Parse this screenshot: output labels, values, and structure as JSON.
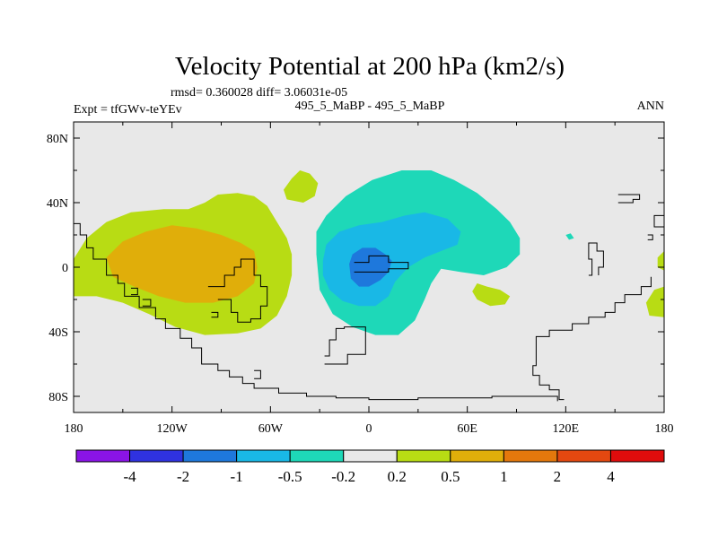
{
  "chart_data": {
    "type": "contour-map",
    "title": "Velocity Potential at 200 hPa (km2/s)",
    "subtitle_stats": "rmsd= 0.360028 diff= 3.06031e-05",
    "left_label": "Expt = tfGWv-teYEv",
    "center_label": "495_5_MaBP - 495_5_MaBP",
    "right_label": "ANN",
    "lon_range": [
      -180,
      180
    ],
    "lat_range": [
      -90,
      90
    ],
    "x_ticks": [
      {
        "value": -180,
        "label": "180"
      },
      {
        "value": -120,
        "label": "120W"
      },
      {
        "value": -60,
        "label": "60W"
      },
      {
        "value": 0,
        "label": "0"
      },
      {
        "value": 60,
        "label": "60E"
      },
      {
        "value": 120,
        "label": "120E"
      },
      {
        "value": 180,
        "label": "180"
      }
    ],
    "y_ticks": [
      {
        "value": 80,
        "label": "80N"
      },
      {
        "value": 40,
        "label": "40N"
      },
      {
        "value": 0,
        "label": "0"
      },
      {
        "value": -40,
        "label": "40S"
      },
      {
        "value": -80,
        "label": "80S"
      }
    ],
    "colorbar": {
      "colors": [
        "#8a14e6",
        "#2f32e0",
        "#1e78dc",
        "#19b8e6",
        "#1ed8b8",
        "#e8e8e8",
        "#b8dc14",
        "#e0ae0a",
        "#e4780c",
        "#e44810",
        "#e00c0c"
      ],
      "labels": [
        "-4",
        "-2",
        "-1",
        "-0.5",
        "-0.2",
        "0.2",
        "0.5",
        "1",
        "2",
        "4"
      ]
    },
    "background_color": "#e8e8e8",
    "regions": [
      {
        "level": "0.2..0.5",
        "color": "#b8dc14",
        "polygons": [
          [
            [
              -180,
              5
            ],
            [
              -172,
              18
            ],
            [
              -160,
              28
            ],
            [
              -145,
              34
            ],
            [
              -125,
              36
            ],
            [
              -110,
              36
            ],
            [
              -100,
              40
            ],
            [
              -92,
              45
            ],
            [
              -80,
              46
            ],
            [
              -70,
              44
            ],
            [
              -62,
              38
            ],
            [
              -56,
              28
            ],
            [
              -50,
              18
            ],
            [
              -47,
              8
            ],
            [
              -47,
              -5
            ],
            [
              -50,
              -18
            ],
            [
              -56,
              -30
            ],
            [
              -66,
              -38
            ],
            [
              -80,
              -41
            ],
            [
              -100,
              -42
            ],
            [
              -118,
              -37
            ],
            [
              -134,
              -29
            ],
            [
              -150,
              -22
            ],
            [
              -166,
              -18
            ],
            [
              -180,
              -18
            ]
          ],
          [
            [
              -42,
              60
            ],
            [
              -47,
              55
            ],
            [
              -52,
              48
            ],
            [
              -50,
              42
            ],
            [
              -40,
              40
            ],
            [
              -33,
              44
            ],
            [
              -31,
              52
            ],
            [
              -36,
              58
            ]
          ],
          [
            [
              66,
              -10
            ],
            [
              72,
              -12
            ],
            [
              80,
              -14
            ],
            [
              86,
              -18
            ],
            [
              83,
              -23
            ],
            [
              74,
              -24
            ],
            [
              66,
              -20
            ],
            [
              63,
              -15
            ]
          ],
          [
            [
              180,
              -12
            ],
            [
              174,
              -14
            ],
            [
              169,
              -22
            ],
            [
              171,
              -30
            ],
            [
              180,
              -31
            ]
          ],
          [
            [
              180,
              10
            ],
            [
              176,
              6
            ],
            [
              176,
              0
            ],
            [
              180,
              -2
            ]
          ]
        ]
      },
      {
        "level": "0.5..1",
        "color": "#e0ae0a",
        "polygons": [
          [
            [
              -160,
              6
            ],
            [
              -150,
              16
            ],
            [
              -136,
              22
            ],
            [
              -120,
              26
            ],
            [
              -105,
              24
            ],
            [
              -90,
              20
            ],
            [
              -78,
              15
            ],
            [
              -70,
              10
            ],
            [
              -68,
              0
            ],
            [
              -70,
              -10
            ],
            [
              -80,
              -18
            ],
            [
              -95,
              -22
            ],
            [
              -112,
              -22
            ],
            [
              -128,
              -18
            ],
            [
              -143,
              -12
            ],
            [
              -156,
              -6
            ]
          ]
        ]
      },
      {
        "level": "-0.5..-0.2",
        "color": "#1ed8b8",
        "polygons": [
          [
            [
              -32,
              8
            ],
            [
              -32,
              22
            ],
            [
              -26,
              32
            ],
            [
              -14,
              44
            ],
            [
              2,
              54
            ],
            [
              20,
              60
            ],
            [
              38,
              60
            ],
            [
              52,
              54
            ],
            [
              66,
              46
            ],
            [
              78,
              36
            ],
            [
              86,
              28
            ],
            [
              92,
              18
            ],
            [
              92,
              8
            ],
            [
              84,
              0
            ],
            [
              70,
              -5
            ],
            [
              56,
              -3
            ],
            [
              44,
              -1
            ],
            [
              38,
              -10
            ],
            [
              34,
              -20
            ],
            [
              28,
              -33
            ],
            [
              18,
              -42
            ],
            [
              4,
              -42
            ],
            [
              -10,
              -37
            ],
            [
              -22,
              -29
            ],
            [
              -30,
              -14
            ]
          ],
          [
            [
              120,
              20
            ],
            [
              122,
              17
            ],
            [
              125,
              18
            ],
            [
              123,
              21
            ]
          ]
        ]
      },
      {
        "level": "-1..-0.5",
        "color": "#19b8e6",
        "polygons": [
          [
            [
              -28,
              4
            ],
            [
              -26,
              14
            ],
            [
              -18,
              22
            ],
            [
              -6,
              26
            ],
            [
              8,
              28
            ],
            [
              22,
              32
            ],
            [
              34,
              34
            ],
            [
              48,
              30
            ],
            [
              56,
              22
            ],
            [
              54,
              14
            ],
            [
              44,
              10
            ],
            [
              34,
              6
            ],
            [
              24,
              0
            ],
            [
              16,
              -9
            ],
            [
              12,
              -18
            ],
            [
              4,
              -24
            ],
            [
              -6,
              -24
            ],
            [
              -16,
              -21
            ],
            [
              -24,
              -14
            ],
            [
              -28,
              -5
            ]
          ]
        ]
      },
      {
        "level": "-2..-1",
        "color": "#1e78dc",
        "polygons": [
          [
            [
              -12,
              2
            ],
            [
              -10,
              8
            ],
            [
              -4,
              12
            ],
            [
              4,
              12
            ],
            [
              10,
              8
            ],
            [
              14,
              4
            ],
            [
              12,
              -3
            ],
            [
              7,
              -8
            ],
            [
              0,
              -12
            ],
            [
              -6,
              -12
            ],
            [
              -11,
              -7
            ]
          ]
        ]
      }
    ],
    "coastlines": [
      [
        [
          -180,
          27
        ],
        [
          -176,
          27
        ],
        [
          -176,
          20
        ],
        [
          -172,
          20
        ],
        [
          -172,
          12
        ],
        [
          -168,
          12
        ],
        [
          -168,
          5
        ],
        [
          -160,
          5
        ],
        [
          -160,
          -5
        ],
        [
          -153,
          -5
        ],
        [
          -153,
          -10
        ],
        [
          -149,
          -10
        ],
        [
          -149,
          -18
        ],
        [
          -140,
          -18
        ],
        [
          -140,
          -25
        ],
        [
          -130,
          -25
        ],
        [
          -130,
          -32
        ],
        [
          -124,
          -32
        ],
        [
          -124,
          -38
        ],
        [
          -115,
          -38
        ],
        [
          -115,
          -44
        ],
        [
          -108,
          -44
        ],
        [
          -108,
          -50
        ],
        [
          -102,
          -50
        ],
        [
          -102,
          -60
        ],
        [
          -92,
          -60
        ],
        [
          -92,
          -64
        ],
        [
          -85,
          -64
        ],
        [
          -85,
          -68
        ],
        [
          -77,
          -68
        ],
        [
          -77,
          -72
        ],
        [
          -70,
          -72
        ],
        [
          -70,
          -75
        ],
        [
          -55,
          -75
        ],
        [
          -55,
          -78
        ],
        [
          -38,
          -78
        ],
        [
          -38,
          -80
        ],
        [
          -20,
          -80
        ],
        [
          -20,
          -81
        ],
        [
          0,
          -81
        ],
        [
          0,
          -82
        ],
        [
          30,
          -82
        ],
        [
          30,
          -81
        ],
        [
          75,
          -81
        ],
        [
          75,
          -80
        ],
        [
          115,
          -80
        ],
        [
          115,
          -83
        ]
      ],
      [
        [
          -98,
          -12
        ],
        [
          -88,
          -12
        ],
        [
          -88,
          -5
        ],
        [
          -82,
          -5
        ],
        [
          -82,
          0
        ],
        [
          -78,
          0
        ],
        [
          -78,
          5
        ],
        [
          -70,
          5
        ],
        [
          -70,
          -5
        ],
        [
          -66,
          -5
        ],
        [
          -66,
          -12
        ],
        [
          -62,
          -12
        ],
        [
          -62,
          -24
        ],
        [
          -66,
          -24
        ],
        [
          -66,
          -32
        ],
        [
          -72,
          -32
        ],
        [
          -72,
          -34
        ],
        [
          -80,
          -34
        ],
        [
          -80,
          -28
        ],
        [
          -84,
          -28
        ],
        [
          -84,
          -20
        ],
        [
          -92,
          -20
        ]
      ],
      [
        [
          -145,
          -13
        ],
        [
          -141,
          -13
        ],
        [
          -141,
          -17
        ],
        [
          -145,
          -17
        ]
      ],
      [
        [
          -138,
          -20
        ],
        [
          -133,
          -20
        ],
        [
          -133,
          -24
        ],
        [
          -138,
          -24
        ]
      ],
      [
        [
          -96,
          -28
        ],
        [
          -92,
          -28
        ],
        [
          -92,
          -31
        ],
        [
          -96,
          -31
        ]
      ],
      [
        [
          -70,
          -64
        ],
        [
          -66,
          -64
        ],
        [
          -66,
          -69
        ],
        [
          -70,
          -69
        ]
      ],
      [
        [
          -9,
          3
        ],
        [
          0,
          3
        ],
        [
          0,
          7
        ],
        [
          12,
          7
        ],
        [
          12,
          3
        ],
        [
          24,
          3
        ],
        [
          24,
          -1
        ],
        [
          12,
          -1
        ],
        [
          12,
          -3
        ],
        [
          -9,
          -3
        ]
      ],
      [
        [
          -27,
          -55
        ],
        [
          -24,
          -55
        ],
        [
          -24,
          -45
        ],
        [
          -20,
          -45
        ],
        [
          -20,
          -38
        ],
        [
          -15,
          -38
        ],
        [
          -15,
          -37
        ],
        [
          -2,
          -37
        ],
        [
          -2,
          -54
        ],
        [
          -13,
          -54
        ],
        [
          -13,
          -60
        ],
        [
          -27,
          -60
        ]
      ],
      [
        [
          119,
          -82
        ],
        [
          116,
          -82
        ],
        [
          116,
          -76
        ],
        [
          110,
          -76
        ],
        [
          110,
          -73
        ],
        [
          104,
          -73
        ],
        [
          104,
          -67
        ],
        [
          100,
          -67
        ],
        [
          100,
          -61
        ],
        [
          102,
          -61
        ],
        [
          102,
          -43
        ],
        [
          110,
          -43
        ],
        [
          110,
          -39
        ],
        [
          124,
          -39
        ],
        [
          124,
          -35
        ],
        [
          134,
          -35
        ],
        [
          134,
          -31
        ],
        [
          144,
          -31
        ],
        [
          144,
          -28
        ],
        [
          150,
          -28
        ],
        [
          150,
          -22
        ],
        [
          156,
          -22
        ],
        [
          156,
          -17
        ],
        [
          166,
          -17
        ],
        [
          166,
          -12
        ],
        [
          172,
          -12
        ],
        [
          172,
          -6
        ]
      ],
      [
        [
          134,
          -5
        ],
        [
          136,
          -5
        ],
        [
          136,
          5
        ],
        [
          134,
          5
        ],
        [
          134,
          15
        ],
        [
          139,
          15
        ],
        [
          139,
          10
        ],
        [
          143,
          10
        ],
        [
          143,
          0
        ],
        [
          140,
          0
        ],
        [
          140,
          -5
        ]
      ],
      [
        [
          152,
          45
        ],
        [
          165,
          45
        ],
        [
          165,
          42
        ],
        [
          161,
          42
        ],
        [
          161,
          40
        ],
        [
          152,
          40
        ]
      ],
      [
        [
          170,
          20
        ],
        [
          173,
          20
        ],
        [
          173,
          17
        ],
        [
          170,
          17
        ]
      ],
      [
        [
          180,
          32
        ],
        [
          174,
          32
        ],
        [
          174,
          25
        ],
        [
          180,
          25
        ]
      ]
    ]
  }
}
